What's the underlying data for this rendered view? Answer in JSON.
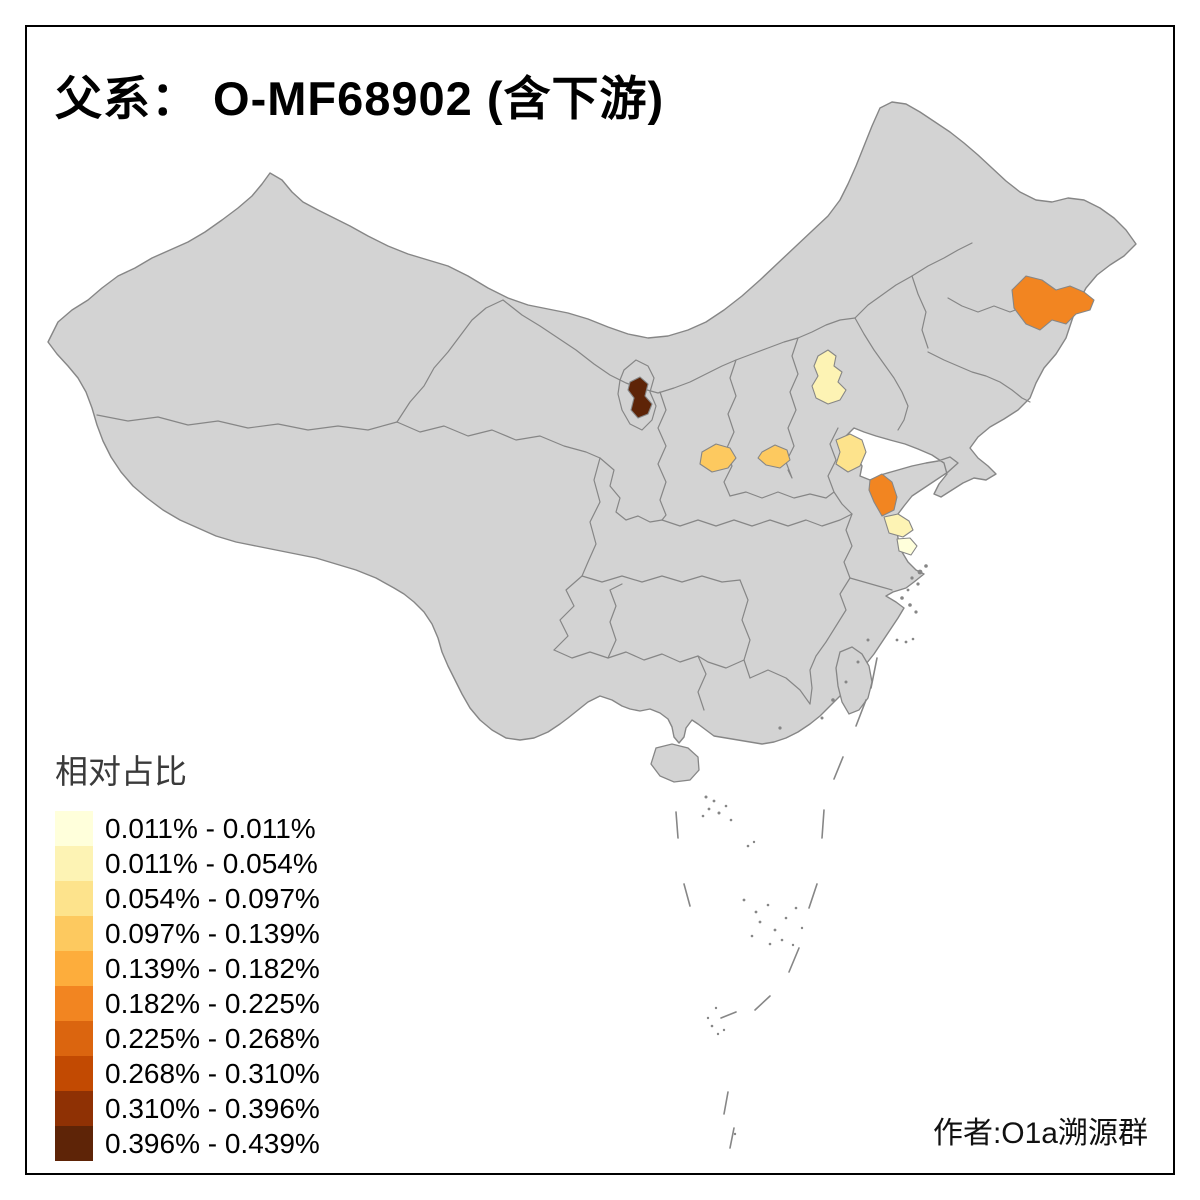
{
  "title": "父系： O-MF68902 (含下游)",
  "author_credit": "作者:O1a溯源群",
  "legend": {
    "title": "相对占比",
    "classes": [
      {
        "label": "0.011% - 0.011%",
        "color": "#FFFFDB"
      },
      {
        "label": "0.011% - 0.054%",
        "color": "#FDF3B4"
      },
      {
        "label": "0.054% - 0.097%",
        "color": "#FDE38C"
      },
      {
        "label": "0.097% - 0.139%",
        "color": "#FDC95F"
      },
      {
        "label": "0.139% - 0.182%",
        "color": "#FDAD3C"
      },
      {
        "label": "0.182% - 0.225%",
        "color": "#F28521"
      },
      {
        "label": "0.225% - 0.268%",
        "color": "#DB650F"
      },
      {
        "label": "0.268% - 0.310%",
        "color": "#C24A02"
      },
      {
        "label": "0.310% - 0.396%",
        "color": "#8F3104"
      },
      {
        "label": "0.396% - 0.439%",
        "color": "#5E2407"
      }
    ]
  },
  "map": {
    "land_color": "#D3D3D3",
    "border_color": "#868686",
    "sea_color": "#FFFFFF",
    "frame_color": "#000000",
    "regions": [
      {
        "name": "yanbian-jilin",
        "class_index": 5
      },
      {
        "name": "beijing",
        "class_index": 1
      },
      {
        "name": "ningxia",
        "class_index": 9
      },
      {
        "name": "shaanxi-central",
        "class_index": 3
      },
      {
        "name": "shanxi-south",
        "class_index": 3
      },
      {
        "name": "shandong-southwest",
        "class_index": 2
      },
      {
        "name": "jiangsu-yancheng",
        "class_index": 5
      },
      {
        "name": "jiangsu-nantong",
        "class_index": 1
      },
      {
        "name": "jiangsu-south",
        "class_index": 0
      }
    ]
  }
}
